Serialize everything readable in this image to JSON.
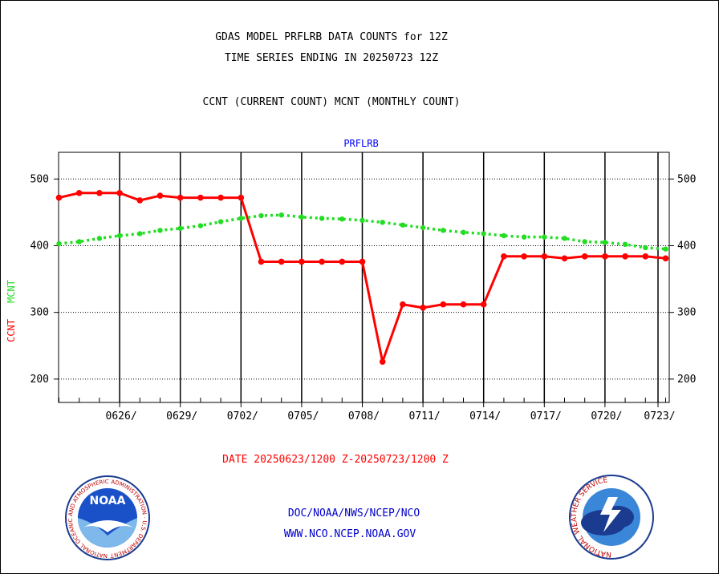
{
  "header": {
    "title_line1": "GDAS MODEL PRFLRB DATA COUNTS for 12Z",
    "title_line2": "TIME SERIES ENDING IN 20250723 12Z",
    "subtitle": "CCNT (CURRENT COUNT) MCNT (MONTHLY COUNT)"
  },
  "footer": {
    "date_range": "DATE 20250623/1200 Z-20250723/1200 Z",
    "link1": "DOC/NOAA/NWS/NCEP/NCO",
    "link2": "WWW.NCO.NCEP.NOAA.GOV",
    "noaa_logo_text": "NOAA",
    "noaa_ring_text": "NATIONAL OCEANIC AND ATMOSPHERIC ADMINISTRATION · U.S. DEPARTMENT OF COMMERCE",
    "nws_ring_text": "NATIONAL WEATHER SERVICE"
  },
  "colors": {
    "ccnt": "#ff0000",
    "mcnt": "#22dd22",
    "plot_title": "#0000ff",
    "date_range": "#ff0000",
    "links": "#0000cc"
  },
  "chart_data": {
    "type": "line",
    "title": "PRFLRB",
    "ylabel_left_parts": [
      "CCNT",
      "MCNT"
    ],
    "ylim": [
      165,
      540
    ],
    "yticks": [
      200,
      300,
      400,
      500
    ],
    "xtick_labels": [
      "0626/",
      "0629/",
      "0702/",
      "0705/",
      "0708/",
      "0711/",
      "0714/",
      "0717/",
      "0720/",
      "0723/"
    ],
    "grid": true,
    "x": [
      "06/23",
      "06/24",
      "06/25",
      "06/26",
      "06/27",
      "06/28",
      "06/29",
      "06/30",
      "07/01",
      "07/02",
      "07/03",
      "07/04",
      "07/05",
      "07/06",
      "07/07",
      "07/08",
      "07/09",
      "07/10",
      "07/11",
      "07/12",
      "07/13",
      "07/14",
      "07/15",
      "07/16",
      "07/17",
      "07/18",
      "07/19",
      "07/20",
      "07/21",
      "07/22",
      "07/23"
    ],
    "series": [
      {
        "name": "CCNT",
        "style": "solid",
        "values": [
          472,
          479,
          479,
          479,
          468,
          475,
          472,
          472,
          472,
          472,
          376,
          376,
          376,
          376,
          376,
          376,
          226,
          312,
          307,
          312,
          312,
          312,
          384,
          384,
          384,
          381,
          384,
          384,
          384,
          384,
          381
        ]
      },
      {
        "name": "MCNT",
        "style": "dashed",
        "values": [
          403,
          406,
          411,
          415,
          418,
          423,
          426,
          430,
          436,
          441,
          445,
          446,
          443,
          441,
          440,
          438,
          435,
          431,
          427,
          423,
          420,
          418,
          415,
          413,
          413,
          411,
          406,
          405,
          402,
          397,
          395
        ]
      }
    ]
  }
}
